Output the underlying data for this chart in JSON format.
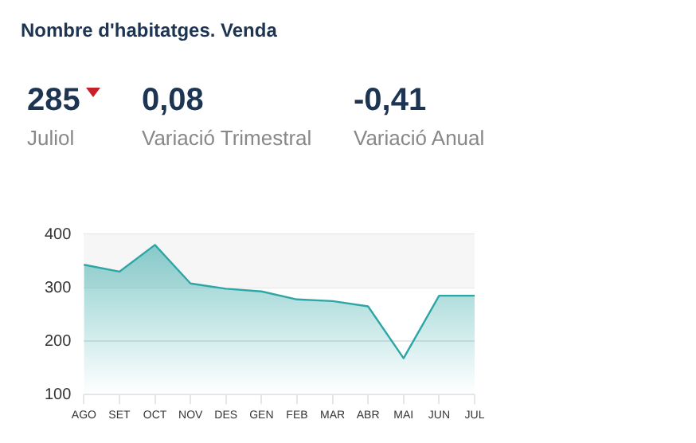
{
  "chart_data": {
    "type": "area",
    "title": "Nombre d'habitatges. Venda",
    "annotations": [
      "285",
      "Juliol",
      "0,08",
      "Variació Trimestral",
      "-0,41",
      "Variació Anual"
    ],
    "categories": [
      "AGO",
      "SET",
      "OCT",
      "NOV",
      "DES",
      "GEN",
      "FEB",
      "MAR",
      "ABR",
      "MAI",
      "JUN",
      "JUL"
    ],
    "series": [
      {
        "color": "#2fa6a6",
        "values": [
          343,
          330,
          380,
          308,
          298,
          293,
          278,
          275,
          265,
          168,
          285,
          285
        ]
      }
    ],
    "ylim": [
      100,
      400
    ],
    "yticks": [
      100,
      200,
      300,
      400
    ],
    "grid": "y",
    "bands": [
      {
        "axis": "y",
        "from": 300,
        "to": 400,
        "color": "#f6f6f6"
      }
    ]
  }
}
